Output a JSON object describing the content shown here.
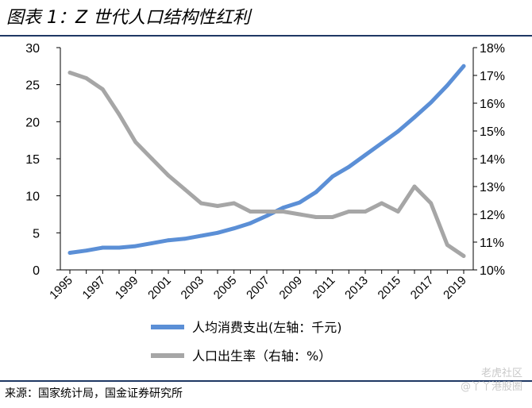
{
  "title": "图表 1：Z 世代人口结构性红利",
  "source": "来源：国家统计局，国金证券研究所",
  "watermark": {
    "line1": "老虎社区",
    "line2": "@丫丫港股圈"
  },
  "colors": {
    "series_blue": "#5b8fd6",
    "series_gray": "#a6a6a6",
    "rule": "#1f3864"
  },
  "chart_data": {
    "type": "line",
    "x": [
      1995,
      1996,
      1997,
      1998,
      1999,
      2000,
      2001,
      2002,
      2003,
      2004,
      2005,
      2006,
      2007,
      2008,
      2009,
      2010,
      2011,
      2012,
      2013,
      2014,
      2015,
      2016,
      2017,
      2018,
      2019
    ],
    "x_tick_labels": [
      "1995",
      "1997",
      "1999",
      "2001",
      "2003",
      "2005",
      "2007",
      "2009",
      "2011",
      "2013",
      "2015",
      "2017",
      "2019"
    ],
    "y_left": {
      "ylim": [
        0,
        30
      ],
      "ticks": [
        "0",
        "5",
        "10",
        "15",
        "20",
        "25",
        "30"
      ]
    },
    "y_right": {
      "ylim": [
        10,
        18
      ],
      "ticks": [
        "10%",
        "11%",
        "12%",
        "13%",
        "14%",
        "15%",
        "16%",
        "17%",
        "18%"
      ]
    },
    "series": [
      {
        "name": "人均消费支出(左轴：千元)",
        "axis": "left",
        "color": "#5b8fd6",
        "values": [
          2.3,
          2.6,
          3.0,
          3.0,
          3.2,
          3.6,
          4.0,
          4.2,
          4.6,
          5.0,
          5.6,
          6.3,
          7.3,
          8.4,
          9.1,
          10.5,
          12.6,
          13.9,
          15.5,
          17.1,
          18.7,
          20.6,
          22.6,
          24.9,
          27.5
        ]
      },
      {
        "name": "人口出生率（右轴：%）",
        "axis": "right",
        "color": "#a6a6a6",
        "values": [
          17.1,
          16.9,
          16.5,
          15.6,
          14.6,
          14.0,
          13.4,
          12.9,
          12.4,
          12.3,
          12.4,
          12.1,
          12.1,
          12.1,
          12.0,
          11.9,
          11.9,
          12.1,
          12.1,
          12.4,
          12.1,
          13.0,
          12.4,
          10.9,
          10.5
        ]
      }
    ],
    "legend_position": "bottom-center",
    "grid": false
  }
}
